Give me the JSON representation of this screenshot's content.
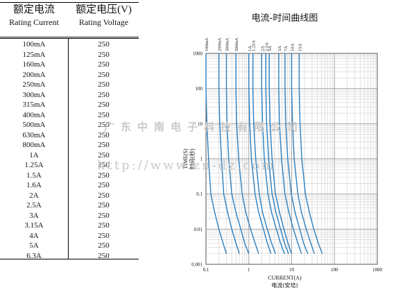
{
  "table": {
    "header_current_cn": "额定电流",
    "header_current_en": "Rating Current",
    "header_voltage_cn": "额定电压(V)",
    "header_voltage_en": "Rating Voltage",
    "rows": [
      {
        "current": "100mA",
        "voltage": "250"
      },
      {
        "current": "125mA",
        "voltage": "250"
      },
      {
        "current": "160mA",
        "voltage": "250"
      },
      {
        "current": "200mA",
        "voltage": "250"
      },
      {
        "current": "250mA",
        "voltage": "250"
      },
      {
        "current": "300mA",
        "voltage": "250"
      },
      {
        "current": "315mA",
        "voltage": "250"
      },
      {
        "current": "400mA",
        "voltage": "250"
      },
      {
        "current": "500mA",
        "voltage": "250"
      },
      {
        "current": "630mA",
        "voltage": "250"
      },
      {
        "current": "800mA",
        "voltage": "250"
      },
      {
        "current": "1A",
        "voltage": "250"
      },
      {
        "current": "1.25A",
        "voltage": "250"
      },
      {
        "current": "1.5A",
        "voltage": "250"
      },
      {
        "current": "1.6A",
        "voltage": "250"
      },
      {
        "current": "2A",
        "voltage": "250"
      },
      {
        "current": "2.5A",
        "voltage": "250"
      },
      {
        "current": "3A",
        "voltage": "250"
      },
      {
        "current": "3.15A",
        "voltage": "250"
      },
      {
        "current": "4A",
        "voltage": "250"
      },
      {
        "current": "5A",
        "voltage": "250"
      },
      {
        "current": "6.3A",
        "voltage": "250"
      }
    ]
  },
  "watermark": {
    "company": "广东中南电子科技有限公司",
    "url": "http://www.zn-dz.com"
  },
  "chart_data": {
    "type": "line",
    "title": "电流-时间曲线图",
    "xlabel_en": "CURRENT(A)",
    "xlabel_cn": "电流(安培)",
    "ylabel_en": "TIME(S)",
    "ylabel_cn": "时间(秒)",
    "x_scale": "log",
    "y_scale": "log",
    "xlim": [
      0.1,
      1000
    ],
    "ylim": [
      0.001,
      1000
    ],
    "x_ticks": [
      "0.1",
      "1",
      "10",
      "100",
      "1000"
    ],
    "y_ticks": [
      "1000",
      "100",
      "10",
      "1",
      "0.1",
      "0.01",
      "0.001"
    ],
    "grid": true,
    "line_color": "#2a7fc0",
    "series": [
      {
        "name": "100mA",
        "x": [
          0.1,
          0.1,
          0.105,
          0.115,
          0.13,
          0.16,
          0.2,
          0.25,
          0.3
        ],
        "y": [
          1000,
          100,
          10,
          1,
          0.1,
          0.03,
          0.01,
          0.004,
          0.002
        ]
      },
      {
        "name": "200mA",
        "x": [
          0.2,
          0.2,
          0.21,
          0.23,
          0.26,
          0.32,
          0.4,
          0.5,
          0.6
        ],
        "y": [
          1000,
          100,
          10,
          1,
          0.1,
          0.03,
          0.01,
          0.004,
          0.002
        ]
      },
      {
        "name": "300mA",
        "x": [
          0.3,
          0.3,
          0.31,
          0.34,
          0.4,
          0.5,
          0.65,
          0.8,
          1.0
        ],
        "y": [
          1000,
          100,
          10,
          1,
          0.1,
          0.03,
          0.01,
          0.004,
          0.002
        ]
      },
      {
        "name": "500mA",
        "x": [
          0.5,
          0.5,
          0.52,
          0.58,
          0.7,
          0.85,
          1.1,
          1.4,
          1.7
        ],
        "y": [
          1000,
          100,
          10,
          1,
          0.1,
          0.03,
          0.01,
          0.004,
          0.002
        ]
      },
      {
        "name": "1A",
        "x": [
          1,
          1,
          1.05,
          1.15,
          1.4,
          1.7,
          2.2,
          2.7,
          3.3
        ],
        "y": [
          1000,
          100,
          10,
          1,
          0.1,
          0.03,
          0.01,
          0.004,
          0.002
        ]
      },
      {
        "name": "1.25A",
        "x": [
          1.25,
          1.25,
          1.3,
          1.45,
          1.75,
          2.1,
          2.7,
          3.4,
          4.2
        ],
        "y": [
          1000,
          100,
          10,
          1,
          0.1,
          0.03,
          0.01,
          0.004,
          0.002
        ]
      },
      {
        "name": "2A",
        "x": [
          2,
          2,
          2.1,
          2.3,
          2.8,
          3.4,
          4.4,
          5.5,
          6.8
        ],
        "y": [
          1000,
          100,
          10,
          1,
          0.1,
          0.03,
          0.01,
          0.004,
          0.002
        ]
      },
      {
        "name": "2.5A",
        "x": [
          2.5,
          2.5,
          2.6,
          2.9,
          3.5,
          4.3,
          5.5,
          6.8,
          8.5
        ],
        "y": [
          1000,
          100,
          10,
          1,
          0.1,
          0.03,
          0.01,
          0.004,
          0.002
        ]
      },
      {
        "name": "3A",
        "x": [
          3,
          3,
          3.15,
          3.5,
          4.2,
          5.2,
          6.6,
          8.2,
          10
        ],
        "y": [
          1000,
          100,
          10,
          1,
          0.1,
          0.03,
          0.01,
          0.004,
          0.002
        ]
      },
      {
        "name": "5A",
        "x": [
          5,
          5,
          5.2,
          5.8,
          7,
          8.6,
          11,
          14,
          17
        ],
        "y": [
          1000,
          100,
          10,
          1,
          0.1,
          0.03,
          0.01,
          0.004,
          0.002
        ]
      },
      {
        "name": "7A",
        "x": [
          7,
          7,
          7.3,
          8.1,
          9.8,
          12,
          15.5,
          19,
          24
        ],
        "y": [
          1000,
          100,
          10,
          1,
          0.1,
          0.03,
          0.01,
          0.004,
          0.002
        ]
      },
      {
        "name": "10A",
        "x": [
          10,
          10,
          10.5,
          11.5,
          14,
          17,
          22,
          28,
          34
        ],
        "y": [
          1000,
          100,
          10,
          1,
          0.1,
          0.03,
          0.01,
          0.004,
          0.002
        ]
      },
      {
        "name": "15A",
        "x": [
          15,
          15,
          15.7,
          17.3,
          21,
          26,
          33,
          42,
          52
        ],
        "y": [
          1000,
          100,
          10,
          1,
          0.1,
          0.03,
          0.01,
          0.004,
          0.002
        ]
      }
    ]
  }
}
